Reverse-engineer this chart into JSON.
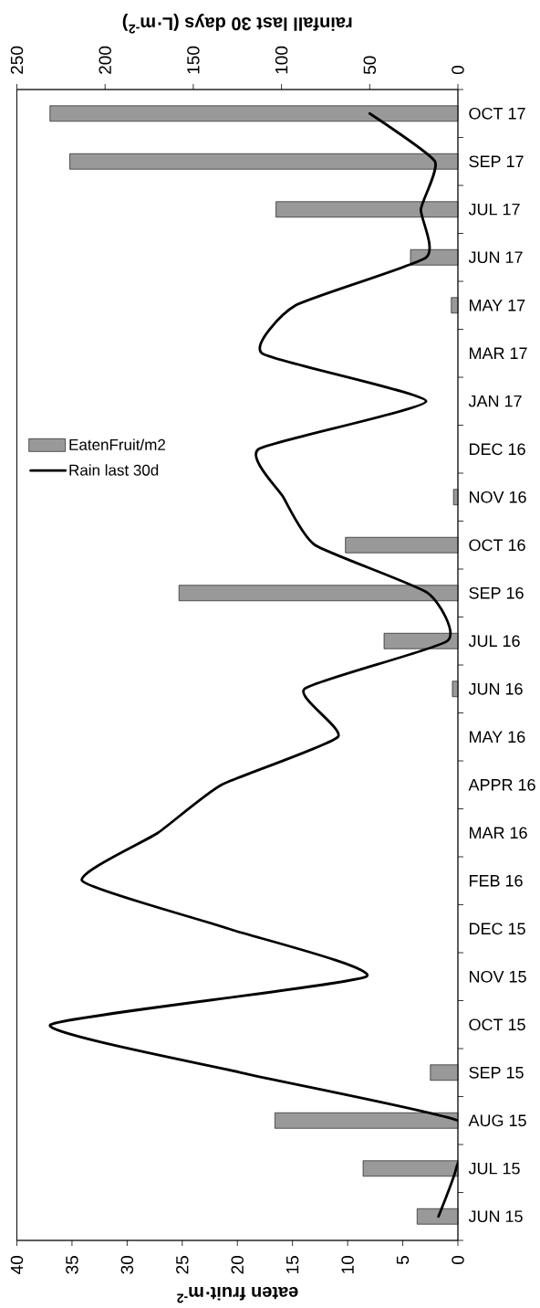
{
  "chart_data": {
    "type": "bar",
    "orientation": "horizontal",
    "categories": [
      "OCT 17",
      "SEP 17",
      "JUL 17",
      "JUN 17",
      "MAY 17",
      "MAR 17",
      "JAN 17",
      "DEC 16",
      "NOV 16",
      "OCT 16",
      "SEP 16",
      "JUL 16",
      "JUN 16",
      "MAY 16",
      "APPR 16",
      "MAR 16",
      "FEB 16",
      "DEC 15",
      "NOV 15",
      "OCT 15",
      "SEP 15",
      "AUG 15",
      "JUL 15",
      "JUN 15"
    ],
    "series": [
      {
        "name": "EatenFruit/m2",
        "color": "#999999",
        "values": [
          37.0,
          35.2,
          16.5,
          4.3,
          0.6,
          null,
          null,
          null,
          0.4,
          10.2,
          25.3,
          6.7,
          0.5,
          null,
          null,
          null,
          null,
          null,
          null,
          null,
          2.5,
          16.6,
          8.6,
          3.7
        ]
      },
      {
        "name": "Rain last 30d",
        "type": "line",
        "axis": "x2",
        "color": "#000000",
        "values": [
          50,
          13,
          21,
          18,
          92,
          111,
          18,
          113,
          99,
          81,
          17,
          6,
          87,
          68,
          134,
          170,
          213,
          130,
          52,
          231,
          123,
          0,
          1,
          11
        ]
      }
    ],
    "xlabel": "eaten fruit·m$^{-2}$",
    "x2label": "rainfall last 30 days (L·m$^{-2}$)",
    "xlim": [
      40,
      0
    ],
    "xticks": [
      0,
      5,
      10,
      15,
      20,
      25,
      30,
      35,
      40
    ],
    "x2lim": [
      250,
      0
    ],
    "x2ticks": [
      0,
      50,
      100,
      150,
      200,
      250
    ],
    "legend": "left"
  }
}
